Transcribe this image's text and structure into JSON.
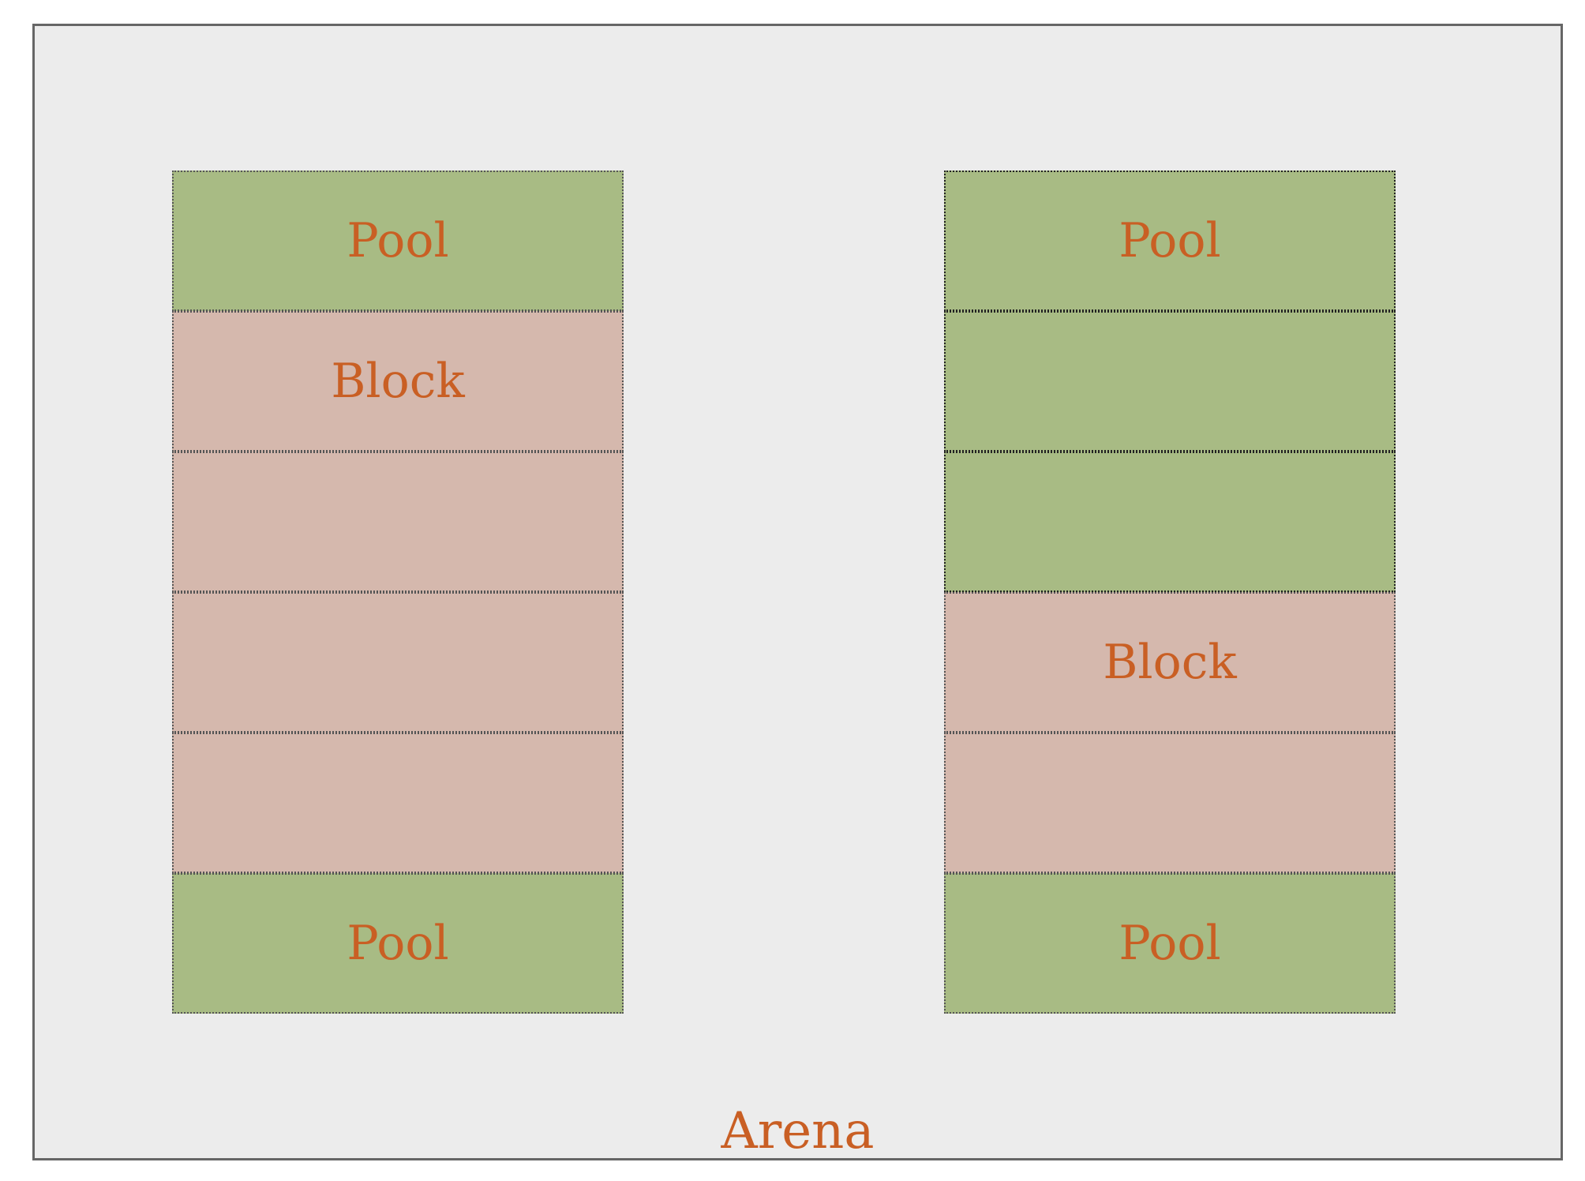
{
  "colors": {
    "pool": "#a8bb84",
    "block": "#d5b8ad",
    "label": "#c95f24",
    "arena_bg": "#ececec",
    "arena_border": "#666666"
  },
  "arena": {
    "label": "Arena"
  },
  "columns": [
    {
      "cells": [
        {
          "kind": "pool",
          "label": "Pool"
        },
        {
          "kind": "block",
          "label": "Block"
        },
        {
          "kind": "block",
          "label": ""
        },
        {
          "kind": "block",
          "label": ""
        },
        {
          "kind": "block",
          "label": ""
        },
        {
          "kind": "pool",
          "label": "Pool"
        }
      ]
    },
    {
      "cells": [
        {
          "kind": "pool",
          "label": "Pool"
        },
        {
          "kind": "pool",
          "label": ""
        },
        {
          "kind": "pool",
          "label": ""
        },
        {
          "kind": "block",
          "label": "Block"
        },
        {
          "kind": "block",
          "label": ""
        },
        {
          "kind": "pool",
          "label": "Pool"
        }
      ]
    }
  ]
}
